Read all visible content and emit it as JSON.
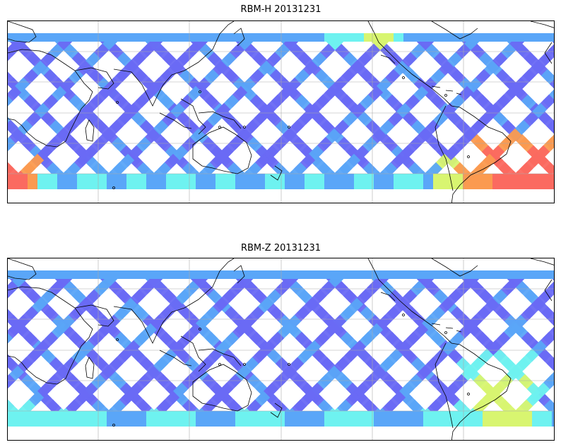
{
  "panels": [
    {
      "title": "RBM-H 20131231",
      "field": "h"
    },
    {
      "title": "RBM-Z 20131231",
      "field": "z"
    }
  ],
  "map": {
    "projection": "equirectangular",
    "gridlines": true,
    "coastlines": true,
    "track_colors": [
      "#6a6af5",
      "#5aa6f8",
      "#6ef2f0",
      "#d8f570",
      "#fb9a50",
      "#fb6a60"
    ]
  }
}
